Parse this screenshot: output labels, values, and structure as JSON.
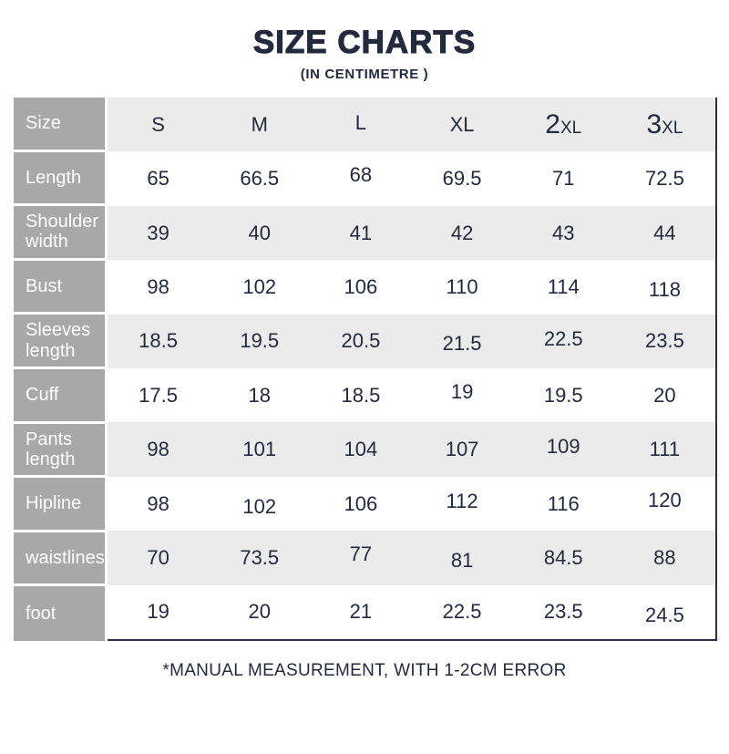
{
  "title": "SIZE CHARTS",
  "subtitle": "(IN CENTIMETRE )",
  "footnote": "*MANUAL MEASUREMENT, WITH 1-2CM ERROR",
  "colors": {
    "accent_navy": "#242a3d",
    "label_gray": "#a8a8a8",
    "row_alt_gray": "#ebebeb",
    "border_dark": "#2a3045"
  },
  "table": {
    "corner_label": "Size",
    "columns": [
      {
        "main": "S",
        "suffix": ""
      },
      {
        "main": "M",
        "suffix": ""
      },
      {
        "main": "L",
        "suffix": ""
      },
      {
        "main": "XL",
        "suffix": ""
      },
      {
        "main": "2",
        "suffix": "XL"
      },
      {
        "main": "3",
        "suffix": "XL"
      }
    ],
    "rows": [
      {
        "label": "Length",
        "values": [
          "65",
          "66.5",
          "68",
          "69.5",
          "71",
          "72.5"
        ]
      },
      {
        "label": "Shoulder width",
        "values": [
          "39",
          "40",
          "41",
          "42",
          "43",
          "44"
        ]
      },
      {
        "label": "Bust",
        "values": [
          "98",
          "102",
          "106",
          "110",
          "114",
          "118"
        ]
      },
      {
        "label": "Sleeves length",
        "values": [
          "18.5",
          "19.5",
          "20.5",
          "21.5",
          "22.5",
          "23.5"
        ]
      },
      {
        "label": "Cuff",
        "values": [
          "17.5",
          "18",
          "18.5",
          "19",
          "19.5",
          "20"
        ]
      },
      {
        "label": "Pants length",
        "values": [
          "98",
          "101",
          "104",
          "107",
          "109",
          "111"
        ]
      },
      {
        "label": "Hipline",
        "values": [
          "98",
          "102",
          "106",
          "112",
          "116",
          "120"
        ]
      },
      {
        "label": "waistlines",
        "values": [
          "70",
          "73.5",
          "77",
          "81",
          "84.5",
          "88"
        ]
      },
      {
        "label": "foot",
        "values": [
          "19",
          "20",
          "21",
          "22.5",
          "23.5",
          "24.5"
        ]
      }
    ]
  },
  "chart_data": {
    "type": "table",
    "title": "SIZE CHARTS",
    "subtitle": "(IN CENTIMETRE )",
    "unit": "cm",
    "categories": [
      "S",
      "M",
      "L",
      "XL",
      "2XL",
      "3XL"
    ],
    "series": [
      {
        "name": "Length",
        "values": [
          65,
          66.5,
          68,
          69.5,
          71,
          72.5
        ]
      },
      {
        "name": "Shoulder width",
        "values": [
          39,
          40,
          41,
          42,
          43,
          44
        ]
      },
      {
        "name": "Bust",
        "values": [
          98,
          102,
          106,
          110,
          114,
          118
        ]
      },
      {
        "name": "Sleeves length",
        "values": [
          18.5,
          19.5,
          20.5,
          21.5,
          22.5,
          23.5
        ]
      },
      {
        "name": "Cuff",
        "values": [
          17.5,
          18,
          18.5,
          19,
          19.5,
          20
        ]
      },
      {
        "name": "Pants length",
        "values": [
          98,
          101,
          104,
          107,
          109,
          111
        ]
      },
      {
        "name": "Hipline",
        "values": [
          98,
          102,
          106,
          112,
          116,
          120
        ]
      },
      {
        "name": "waistlines",
        "values": [
          70,
          73.5,
          77,
          81,
          84.5,
          88
        ]
      },
      {
        "name": "foot",
        "values": [
          19,
          20,
          21,
          22.5,
          23.5,
          24.5
        ]
      }
    ],
    "note": "*MANUAL MEASUREMENT, WITH 1-2CM ERROR"
  }
}
